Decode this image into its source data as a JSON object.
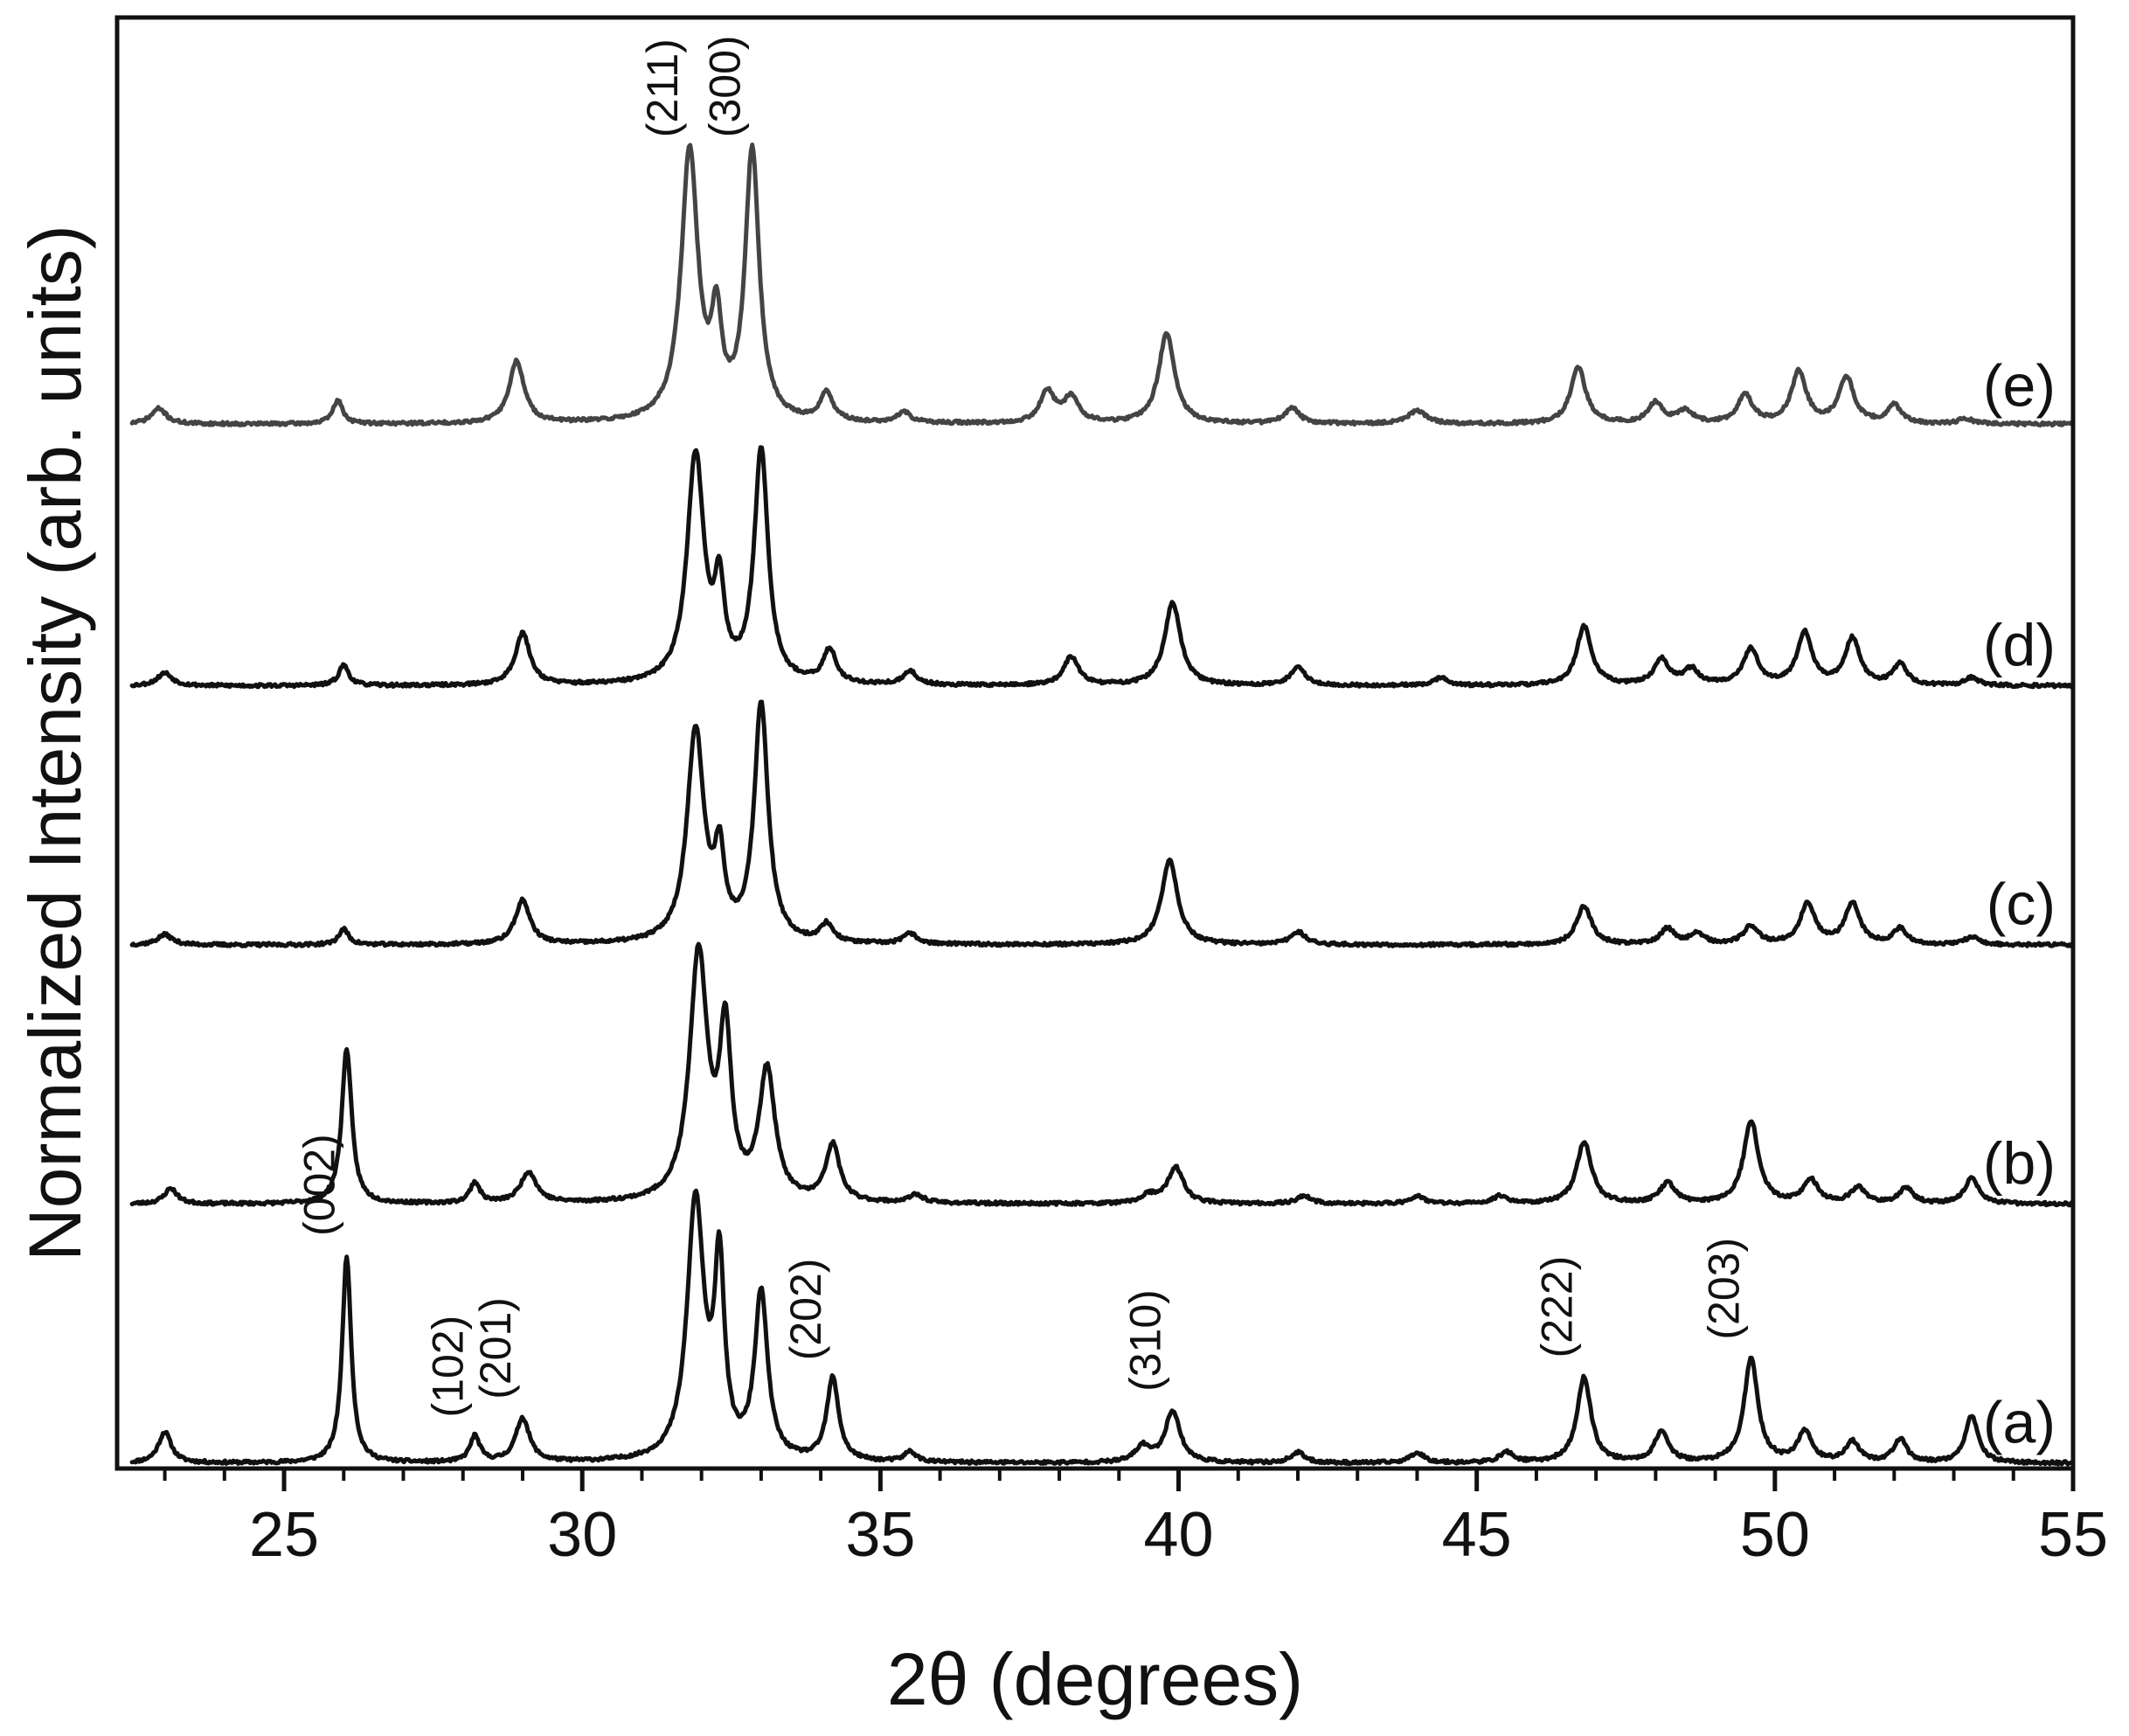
{
  "chart_data": {
    "type": "line",
    "title": "",
    "xlabel": "2θ (degrees)",
    "ylabel": "Normalized Intensity (arb. units)",
    "xlim": [
      22.2,
      55
    ],
    "ylim": [
      0,
      5.6
    ],
    "x_major_ticks": [
      25,
      30,
      35,
      40,
      45,
      50,
      55
    ],
    "x_tick_labels": [
      "25",
      "30",
      "35",
      "40",
      "45",
      "50",
      "55"
    ],
    "x_minor_step": 1,
    "y_ticks_shown": false,
    "grid": false,
    "legend": "none",
    "series": [
      {
        "name": "(a)",
        "color": "#111111",
        "offset": 0.0,
        "baseline": 0.02,
        "noise": 0.006,
        "seed": 11,
        "peaks": [
          {
            "x": 23.0,
            "h": 0.12,
            "w": 0.13
          },
          {
            "x": 26.05,
            "h": 0.8,
            "w": 0.09
          },
          {
            "x": 28.2,
            "h": 0.1,
            "w": 0.1
          },
          {
            "x": 29.0,
            "h": 0.17,
            "w": 0.14
          },
          {
            "x": 31.9,
            "h": 1.0,
            "w": 0.17
          },
          {
            "x": 32.3,
            "h": 0.72,
            "w": 0.1
          },
          {
            "x": 33.0,
            "h": 0.64,
            "w": 0.13
          },
          {
            "x": 34.2,
            "h": 0.32,
            "w": 0.12
          },
          {
            "x": 35.5,
            "h": 0.04,
            "w": 0.12
          },
          {
            "x": 39.4,
            "h": 0.06,
            "w": 0.15
          },
          {
            "x": 39.9,
            "h": 0.2,
            "w": 0.15
          },
          {
            "x": 42.0,
            "h": 0.04,
            "w": 0.14
          },
          {
            "x": 44.0,
            "h": 0.04,
            "w": 0.14
          },
          {
            "x": 45.5,
            "h": 0.04,
            "w": 0.14
          },
          {
            "x": 46.8,
            "h": 0.33,
            "w": 0.14
          },
          {
            "x": 48.1,
            "h": 0.12,
            "w": 0.14
          },
          {
            "x": 49.6,
            "h": 0.4,
            "w": 0.14
          },
          {
            "x": 50.5,
            "h": 0.12,
            "w": 0.14
          },
          {
            "x": 51.3,
            "h": 0.08,
            "w": 0.14
          },
          {
            "x": 52.1,
            "h": 0.09,
            "w": 0.13
          },
          {
            "x": 53.3,
            "h": 0.18,
            "w": 0.13
          }
        ]
      },
      {
        "name": "(b)",
        "color": "#111111",
        "offset": 1.0,
        "baseline": 0.02,
        "noise": 0.006,
        "seed": 23,
        "peaks": [
          {
            "x": 23.1,
            "h": 0.06,
            "w": 0.13
          },
          {
            "x": 26.05,
            "h": 0.6,
            "w": 0.1
          },
          {
            "x": 28.2,
            "h": 0.08,
            "w": 0.1
          },
          {
            "x": 29.1,
            "h": 0.12,
            "w": 0.16
          },
          {
            "x": 31.95,
            "h": 0.95,
            "w": 0.18
          },
          {
            "x": 32.4,
            "h": 0.62,
            "w": 0.12
          },
          {
            "x": 33.1,
            "h": 0.5,
            "w": 0.16
          },
          {
            "x": 34.2,
            "h": 0.22,
            "w": 0.14
          },
          {
            "x": 35.6,
            "h": 0.03,
            "w": 0.15
          },
          {
            "x": 39.5,
            "h": 0.03,
            "w": 0.15
          },
          {
            "x": 39.95,
            "h": 0.14,
            "w": 0.16
          },
          {
            "x": 42.1,
            "h": 0.03,
            "w": 0.15
          },
          {
            "x": 44.0,
            "h": 0.03,
            "w": 0.15
          },
          {
            "x": 45.4,
            "h": 0.03,
            "w": 0.15
          },
          {
            "x": 46.8,
            "h": 0.24,
            "w": 0.15
          },
          {
            "x": 48.2,
            "h": 0.08,
            "w": 0.15
          },
          {
            "x": 49.6,
            "h": 0.32,
            "w": 0.15
          },
          {
            "x": 50.6,
            "h": 0.09,
            "w": 0.15
          },
          {
            "x": 51.4,
            "h": 0.06,
            "w": 0.15
          },
          {
            "x": 52.2,
            "h": 0.06,
            "w": 0.14
          },
          {
            "x": 53.3,
            "h": 0.1,
            "w": 0.14
          }
        ]
      },
      {
        "name": "(c)",
        "color": "#111111",
        "offset": 2.0,
        "baseline": 0.02,
        "noise": 0.006,
        "seed": 37,
        "peaks": [
          {
            "x": 23.0,
            "h": 0.04,
            "w": 0.15
          },
          {
            "x": 26.0,
            "h": 0.06,
            "w": 0.1
          },
          {
            "x": 29.0,
            "h": 0.17,
            "w": 0.15
          },
          {
            "x": 31.9,
            "h": 0.82,
            "w": 0.17
          },
          {
            "x": 32.3,
            "h": 0.3,
            "w": 0.1
          },
          {
            "x": 33.0,
            "h": 0.92,
            "w": 0.14
          },
          {
            "x": 34.1,
            "h": 0.07,
            "w": 0.13
          },
          {
            "x": 35.5,
            "h": 0.04,
            "w": 0.14
          },
          {
            "x": 39.85,
            "h": 0.33,
            "w": 0.16
          },
          {
            "x": 42.0,
            "h": 0.05,
            "w": 0.15
          },
          {
            "x": 46.8,
            "h": 0.15,
            "w": 0.15
          },
          {
            "x": 48.2,
            "h": 0.06,
            "w": 0.15
          },
          {
            "x": 48.7,
            "h": 0.04,
            "w": 0.15
          },
          {
            "x": 49.6,
            "h": 0.07,
            "w": 0.15
          },
          {
            "x": 50.55,
            "h": 0.16,
            "w": 0.15
          },
          {
            "x": 51.3,
            "h": 0.16,
            "w": 0.15
          },
          {
            "x": 52.1,
            "h": 0.06,
            "w": 0.14
          },
          {
            "x": 53.3,
            "h": 0.03,
            "w": 0.14
          }
        ]
      },
      {
        "name": "(d)",
        "color": "#111111",
        "offset": 3.0,
        "baseline": 0.02,
        "noise": 0.006,
        "seed": 53,
        "peaks": [
          {
            "x": 23.0,
            "h": 0.05,
            "w": 0.15
          },
          {
            "x": 26.0,
            "h": 0.08,
            "w": 0.1
          },
          {
            "x": 29.0,
            "h": 0.2,
            "w": 0.15
          },
          {
            "x": 31.9,
            "h": 0.88,
            "w": 0.17
          },
          {
            "x": 32.3,
            "h": 0.33,
            "w": 0.1
          },
          {
            "x": 33.0,
            "h": 0.9,
            "w": 0.14
          },
          {
            "x": 34.15,
            "h": 0.13,
            "w": 0.13
          },
          {
            "x": 35.5,
            "h": 0.05,
            "w": 0.14
          },
          {
            "x": 38.2,
            "h": 0.11,
            "w": 0.15
          },
          {
            "x": 39.9,
            "h": 0.32,
            "w": 0.16
          },
          {
            "x": 42.0,
            "h": 0.07,
            "w": 0.15
          },
          {
            "x": 44.4,
            "h": 0.03,
            "w": 0.15
          },
          {
            "x": 46.8,
            "h": 0.23,
            "w": 0.15
          },
          {
            "x": 48.1,
            "h": 0.1,
            "w": 0.15
          },
          {
            "x": 48.6,
            "h": 0.06,
            "w": 0.15
          },
          {
            "x": 49.6,
            "h": 0.14,
            "w": 0.15
          },
          {
            "x": 50.5,
            "h": 0.2,
            "w": 0.15
          },
          {
            "x": 51.3,
            "h": 0.18,
            "w": 0.15
          },
          {
            "x": 52.1,
            "h": 0.08,
            "w": 0.14
          },
          {
            "x": 53.3,
            "h": 0.03,
            "w": 0.14
          }
        ]
      },
      {
        "name": "(e)",
        "color": "#444444",
        "offset": 4.0,
        "baseline": 0.03,
        "noise": 0.006,
        "seed": 71,
        "peaks": [
          {
            "x": 22.9,
            "h": 0.06,
            "w": 0.15
          },
          {
            "x": 25.9,
            "h": 0.09,
            "w": 0.1
          },
          {
            "x": 28.9,
            "h": 0.24,
            "w": 0.15
          },
          {
            "x": 31.8,
            "h": 1.04,
            "w": 0.17
          },
          {
            "x": 32.25,
            "h": 0.35,
            "w": 0.1
          },
          {
            "x": 32.85,
            "h": 1.04,
            "w": 0.14
          },
          {
            "x": 34.1,
            "h": 0.11,
            "w": 0.13
          },
          {
            "x": 35.4,
            "h": 0.04,
            "w": 0.14
          },
          {
            "x": 37.8,
            "h": 0.12,
            "w": 0.15
          },
          {
            "x": 38.2,
            "h": 0.1,
            "w": 0.15
          },
          {
            "x": 39.8,
            "h": 0.35,
            "w": 0.16
          },
          {
            "x": 41.9,
            "h": 0.06,
            "w": 0.15
          },
          {
            "x": 44.0,
            "h": 0.05,
            "w": 0.18
          },
          {
            "x": 46.7,
            "h": 0.22,
            "w": 0.15
          },
          {
            "x": 48.0,
            "h": 0.08,
            "w": 0.15
          },
          {
            "x": 48.5,
            "h": 0.05,
            "w": 0.15
          },
          {
            "x": 49.5,
            "h": 0.11,
            "w": 0.15
          },
          {
            "x": 50.4,
            "h": 0.2,
            "w": 0.15
          },
          {
            "x": 51.2,
            "h": 0.18,
            "w": 0.15
          },
          {
            "x": 52.0,
            "h": 0.07,
            "w": 0.14
          },
          {
            "x": 53.2,
            "h": 0.02,
            "w": 0.14
          }
        ]
      }
    ],
    "annotations": [
      {
        "text": "(002)",
        "x": 26.05,
        "y": 0.85
      },
      {
        "text": "(102)",
        "x": 28.2,
        "y": 0.15
      },
      {
        "text": "(201)",
        "x": 29.0,
        "y": 0.22
      },
      {
        "text": "(202)",
        "x": 34.2,
        "y": 0.37
      },
      {
        "text": "(310)",
        "x": 39.9,
        "y": 0.25
      },
      {
        "text": "(222)",
        "x": 46.8,
        "y": 0.38
      },
      {
        "text": "(203)",
        "x": 49.6,
        "y": 0.45
      },
      {
        "text": "(211)",
        "x": 31.8,
        "y": 5.09
      },
      {
        "text": "(300)",
        "x": 32.85,
        "y": 5.09
      }
    ]
  }
}
